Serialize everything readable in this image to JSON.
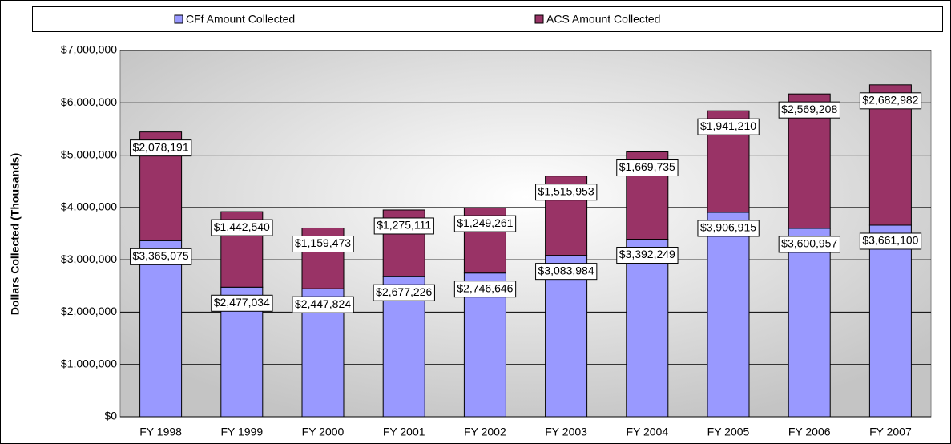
{
  "chart_data": {
    "type": "stacked_bar",
    "y_label": "Dollars Collected (Thousands)",
    "categories": [
      "FY 1998",
      "FY 1999",
      "FY 2000",
      "FY 2001",
      "FY 2002",
      "FY 2003",
      "FY 2004",
      "FY 2005",
      "FY 2006",
      "FY 2007"
    ],
    "series": [
      {
        "name": "CFf Amount Collected",
        "color": "#9999ff",
        "values": [
          3365075,
          2477034,
          2447824,
          2677226,
          2746646,
          3083984,
          3392249,
          3906915,
          3600957,
          3661100
        ],
        "value_labels": [
          "$3,365,075",
          "$2,477,034",
          "$2,447,824",
          "$2,677,226",
          "$2,746,646",
          "$3,083,984",
          "$3,392,249",
          "$3,906,915",
          "$3,600,957",
          "$3,661,100"
        ]
      },
      {
        "name": "ACS Amount Collected",
        "color": "#993366",
        "values": [
          2078191,
          1442540,
          1159473,
          1275111,
          1249261,
          1515953,
          1669735,
          1941210,
          2569208,
          2682982
        ],
        "value_labels": [
          "$2,078,191",
          "$1,442,540",
          "$1,159,473",
          "$1,275,111",
          "$1,249,261",
          "$1,515,953",
          "$1,669,735",
          "$1,941,210",
          "$2,569,208",
          "$2,682,982"
        ]
      }
    ],
    "ylim": [
      0,
      7000000
    ],
    "yticks": [
      {
        "value": 0,
        "label": "$0"
      },
      {
        "value": 1000000,
        "label": "$1,000,000"
      },
      {
        "value": 2000000,
        "label": "$2,000,000"
      },
      {
        "value": 3000000,
        "label": "$3,000,000"
      },
      {
        "value": 4000000,
        "label": "$4,000,000"
      },
      {
        "value": 5000000,
        "label": "$5,000,000"
      },
      {
        "value": 6000000,
        "label": "$6,000,000"
      },
      {
        "value": 7000000,
        "label": "$7,000,000"
      }
    ],
    "grid": true,
    "legend": "top"
  }
}
